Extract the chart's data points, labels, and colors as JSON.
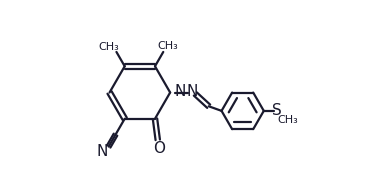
{
  "bg_color": "#ffffff",
  "line_color": "#1a1a2e",
  "line_width": 1.6,
  "font_size": 10,
  "figsize": [
    3.66,
    1.85
  ],
  "dpi": 100,
  "xlim": [
    0.0,
    1.0
  ],
  "ylim": [
    0.0,
    1.0
  ]
}
